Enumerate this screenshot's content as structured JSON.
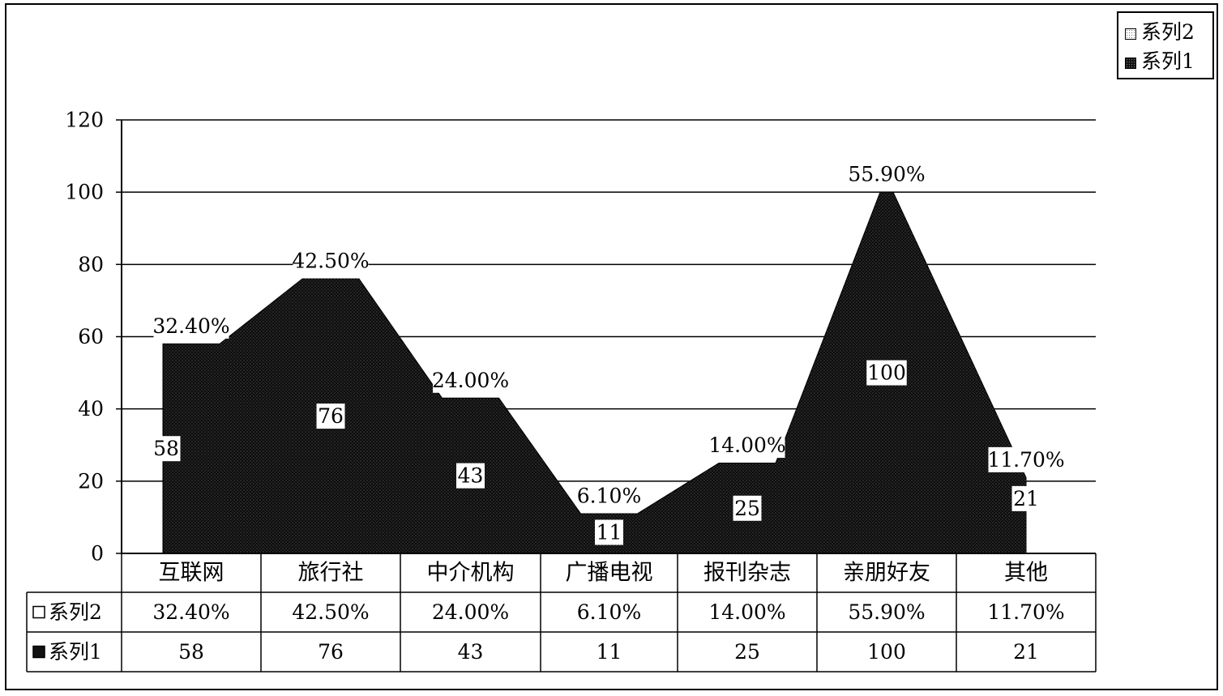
{
  "legend": {
    "series2": "系列2",
    "series1": "系列1"
  },
  "chart_data": {
    "type": "area",
    "ylim": [
      0,
      120
    ],
    "yticks": [
      "0",
      "20",
      "40",
      "60",
      "80",
      "100",
      "120"
    ],
    "grid": true,
    "legend_position": "top-right",
    "categories": [
      "互联网",
      "旅行社",
      "中介机构",
      "广播电视",
      "报刊杂志",
      "亲朋好友",
      "其他"
    ],
    "series": [
      {
        "name": "系列2",
        "values": [
          32.4,
          42.5,
          24.0,
          6.1,
          14.0,
          55.9,
          11.7
        ],
        "labels": [
          "32.40%",
          "42.50%",
          "24.00%",
          "6.10%",
          "14.00%",
          "55.90%",
          "11.70%"
        ]
      },
      {
        "name": "系列1",
        "values": [
          58,
          76,
          43,
          11,
          25,
          100,
          21
        ],
        "labels": [
          "58",
          "76",
          "43",
          "11",
          "25",
          "100",
          "21"
        ]
      }
    ]
  }
}
